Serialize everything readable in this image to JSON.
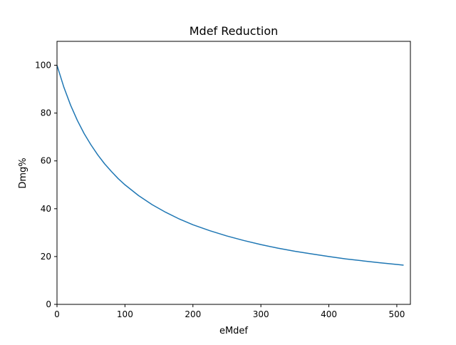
{
  "chart_data": {
    "type": "line",
    "title": "Mdef Reduction",
    "xlabel": "eMdef",
    "ylabel": "Dmg%",
    "xlim": [
      0,
      520
    ],
    "ylim": [
      0,
      110
    ],
    "xticks": [
      0,
      100,
      200,
      300,
      400,
      500
    ],
    "yticks": [
      0,
      20,
      40,
      60,
      80,
      100
    ],
    "grid": false,
    "legend": "none",
    "series": [
      {
        "color": "#1f77b4",
        "x": [
          0,
          10,
          20,
          30,
          40,
          50,
          60,
          70,
          80,
          90,
          100,
          120,
          140,
          160,
          180,
          200,
          225,
          250,
          275,
          300,
          325,
          350,
          375,
          400,
          425,
          450,
          475,
          500,
          510
        ],
        "y": [
          100,
          90.9,
          83.3,
          76.9,
          71.4,
          66.7,
          62.5,
          58.8,
          55.6,
          52.6,
          50.0,
          45.5,
          41.7,
          38.5,
          35.7,
          33.3,
          30.8,
          28.6,
          26.7,
          25.0,
          23.5,
          22.2,
          21.1,
          20.0,
          19.0,
          18.2,
          17.4,
          16.7,
          16.4
        ]
      }
    ]
  }
}
